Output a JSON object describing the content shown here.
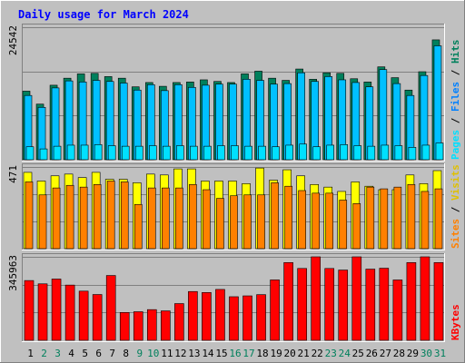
{
  "chart_data": {
    "type": "bar",
    "title": "Daily usage for March 2024",
    "colors": {
      "background": "#c0c0c0",
      "plot": "#c0c0c0",
      "title": "#0000ff",
      "hits": "#00805c",
      "files": "#00c0ff",
      "pages": "#00e0ff",
      "visits": "#ffff00",
      "sites": "#ff8000",
      "kbytes": "#ff0000",
      "weekend_day": "#00805c",
      "weekday": "#000000"
    },
    "days": [
      "1",
      "2",
      "3",
      "4",
      "5",
      "6",
      "7",
      "8",
      "9",
      "10",
      "11",
      "12",
      "13",
      "14",
      "15",
      "16",
      "17",
      "18",
      "19",
      "20",
      "21",
      "22",
      "23",
      "24",
      "25",
      "26",
      "27",
      "28",
      "29",
      "30",
      "31"
    ],
    "weekend_days": [
      "2",
      "3",
      "9",
      "10",
      "16",
      "17",
      "23",
      "24",
      "30",
      "31"
    ],
    "panels": [
      {
        "name": "hits-files-pages",
        "max_label": "24542",
        "ylim": [
          0,
          24542
        ],
        "side_labels": [
          "Pages",
          "Files",
          "Hits"
        ],
        "series": [
          {
            "name": "Hits",
            "values": [
              12700,
              10300,
              13800,
              15100,
              15900,
              16000,
              15400,
              15100,
              13500,
              14300,
              13600,
              14300,
              14400,
              14800,
              14500,
              14300,
              15900,
              16400,
              15100,
              14700,
              16800,
              14900,
              16100,
              16000,
              15000,
              14400,
              17200,
              15200,
              12900,
              16300,
              22200
            ]
          },
          {
            "name": "Files",
            "values": [
              11900,
              9700,
              13300,
              14600,
              14400,
              14700,
              14500,
              14200,
              12900,
              13900,
              12800,
              13900,
              13400,
              13800,
              14000,
              14000,
              14900,
              14700,
              14000,
              14100,
              16100,
              14500,
              15400,
              14800,
              14300,
              13500,
              16700,
              14100,
              11900,
              15600,
              21100
            ]
          },
          {
            "name": "Pages",
            "values": [
              2400,
              2000,
              2500,
              2700,
              2700,
              2800,
              2600,
              2500,
              2500,
              2600,
              2500,
              2600,
              2500,
              2500,
              2600,
              2600,
              2500,
              2500,
              2400,
              2700,
              2900,
              2400,
              2700,
              2800,
              2600,
              2500,
              2700,
              2600,
              2300,
              2700,
              3100
            ]
          }
        ]
      },
      {
        "name": "visits-sites",
        "max_label": "471",
        "ylim": [
          0,
          471
        ],
        "side_labels": [
          "Sites",
          "Visits"
        ],
        "series": [
          {
            "name": "Visits",
            "values": [
              440,
              390,
              420,
              430,
              410,
              440,
              400,
              400,
              380,
              430,
              425,
              460,
              460,
              390,
              390,
              390,
              375,
              465,
              395,
              455,
              420,
              370,
              355,
              330,
              385,
              360,
              340,
              340,
              425,
              375,
              450
            ]
          },
          {
            "name": "Sites",
            "values": [
              385,
              310,
              350,
              365,
              355,
              370,
              390,
              385,
              255,
              350,
              350,
              350,
              370,
              340,
              290,
              305,
              310,
              310,
              380,
              360,
              335,
              320,
              320,
              280,
              260,
              355,
              345,
              355,
              370,
              330,
              345
            ]
          }
        ]
      },
      {
        "name": "kbytes",
        "max_label": "345963",
        "ylim": [
          0,
          345963
        ],
        "side_labels": [
          "KBytes"
        ],
        "series": [
          {
            "name": "KBytes",
            "values": [
              247700,
              234000,
              253900,
              228900,
              203800,
              189800,
              268600,
              115400,
              118500,
              127200,
              122000,
              152200,
              202200,
              198100,
              210900,
              180600,
              184200,
              189300,
              250300,
              322200,
              297800,
              345963,
              297700,
              291200,
              345963,
              295000,
              298800,
              250200,
              322200,
              345963,
              322200
            ]
          }
        ]
      }
    ]
  }
}
